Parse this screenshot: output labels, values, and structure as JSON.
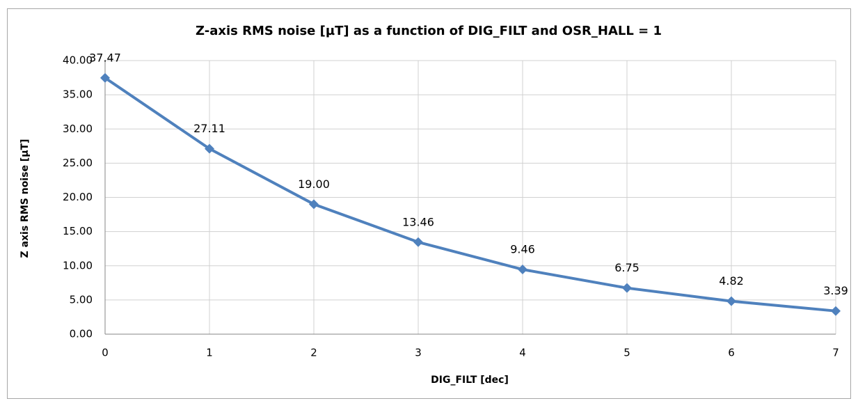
{
  "chart_data": {
    "type": "line",
    "title": "Z-axis RMS noise [µT] as a function of DIG_FILT and OSR_HALL = 1",
    "x_label": "DIG_FILT  [dec]",
    "y_label": "Z axis  RMS noise  [µT]",
    "x": [
      0,
      1,
      2,
      3,
      4,
      5,
      6,
      7
    ],
    "series": [
      {
        "name": "Z-axis RMS noise",
        "color": "#4f81bd",
        "values": [
          37.47,
          27.11,
          19.0,
          13.46,
          9.46,
          6.75,
          4.82,
          3.39
        ],
        "value_labels": [
          "37.47",
          "27.11",
          "19.00",
          "13.46",
          "9.46",
          "6.75",
          "4.82",
          "3.39"
        ]
      }
    ],
    "xlim": [
      0,
      7
    ],
    "xticks": [
      0,
      1,
      2,
      3,
      4,
      5,
      6,
      7
    ],
    "ylim": [
      0,
      40
    ],
    "yticks": [
      {
        "value": 0,
        "label": "0.00"
      },
      {
        "value": 5,
        "label": "5.00"
      },
      {
        "value": 10,
        "label": "10.00"
      },
      {
        "value": 15,
        "label": "15.00"
      },
      {
        "value": 20,
        "label": "20.00"
      },
      {
        "value": 25,
        "label": "25.00"
      },
      {
        "value": 30,
        "label": "30.00"
      },
      {
        "value": 35,
        "label": "35.00"
      },
      {
        "value": 40,
        "label": "40.00"
      }
    ],
    "grid": true
  }
}
